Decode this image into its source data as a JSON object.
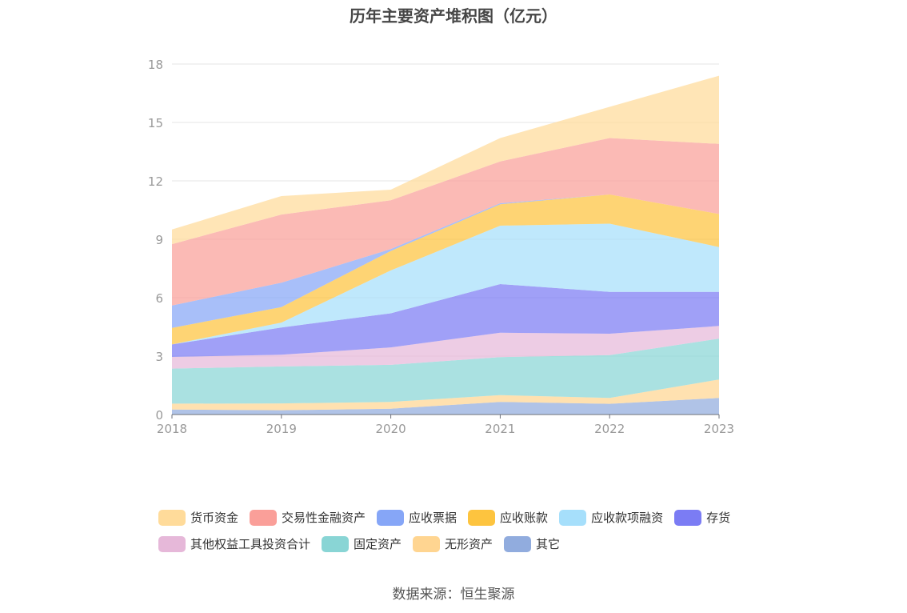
{
  "chart_data": {
    "type": "area",
    "stacked": true,
    "title": "历年主要资产堆积图（亿元）",
    "x": [
      "2018",
      "2019",
      "2020",
      "2021",
      "2022",
      "2023"
    ],
    "ylim": [
      0,
      18
    ],
    "yticks": [
      "0",
      "3",
      "6",
      "9",
      "12",
      "15",
      "18"
    ],
    "grid": true,
    "legend_position": "bottom",
    "series": [
      {
        "name": "其它",
        "color": "#91acde",
        "values": [
          0.26,
          0.22,
          0.3,
          0.65,
          0.55,
          0.85
        ]
      },
      {
        "name": "无形资产",
        "color": "#ffd591",
        "values": [
          0.3,
          0.35,
          0.35,
          0.35,
          0.3,
          0.95
        ]
      },
      {
        "name": "固定资产",
        "color": "#89d5d5",
        "values": [
          1.8,
          1.9,
          1.9,
          1.95,
          2.2,
          2.1
        ]
      },
      {
        "name": "其他权益工具投资合计",
        "color": "#e6b8d9",
        "values": [
          0.6,
          0.6,
          0.9,
          1.25,
          1.1,
          0.65
        ]
      },
      {
        "name": "存货",
        "color": "#7b7cf4",
        "values": [
          0.64,
          1.4,
          1.75,
          2.5,
          2.15,
          1.75
        ]
      },
      {
        "name": "应收款项融资",
        "color": "#a6dffb",
        "values": [
          0.0,
          0.25,
          2.2,
          3.0,
          3.5,
          2.3
        ]
      },
      {
        "name": "应收账款",
        "color": "#fdc43f",
        "values": [
          0.85,
          0.8,
          1.0,
          1.1,
          1.5,
          1.7
        ]
      },
      {
        "name": "应收票据",
        "color": "#86a6f7",
        "values": [
          1.15,
          1.25,
          0.1,
          0.05,
          0.0,
          0.0
        ]
      },
      {
        "name": "交易性金融资产",
        "color": "#fa9f99",
        "values": [
          3.15,
          3.5,
          2.5,
          2.15,
          2.9,
          3.6
        ]
      },
      {
        "name": "货币资金",
        "color": "#ffdb9a",
        "values": [
          0.75,
          0.95,
          0.55,
          1.2,
          1.6,
          3.5
        ]
      }
    ]
  },
  "legend": {
    "rows": [
      [
        {
          "label": "货币资金",
          "color": "#ffdb9a"
        },
        {
          "label": "交易性金融资产",
          "color": "#fa9f99"
        },
        {
          "label": "应收票据",
          "color": "#86a6f7"
        },
        {
          "label": "应收账款",
          "color": "#fdc43f"
        },
        {
          "label": "应收款项融资",
          "color": "#a6dffb"
        },
        {
          "label": "存货",
          "color": "#7b7cf4"
        }
      ],
      [
        {
          "label": "其他权益工具投资合计",
          "color": "#e6b8d9"
        },
        {
          "label": "固定资产",
          "color": "#89d5d5"
        },
        {
          "label": "无形资产",
          "color": "#ffd591"
        },
        {
          "label": "其它",
          "color": "#91acde"
        }
      ]
    ]
  },
  "source": "数据来源：恒生聚源"
}
